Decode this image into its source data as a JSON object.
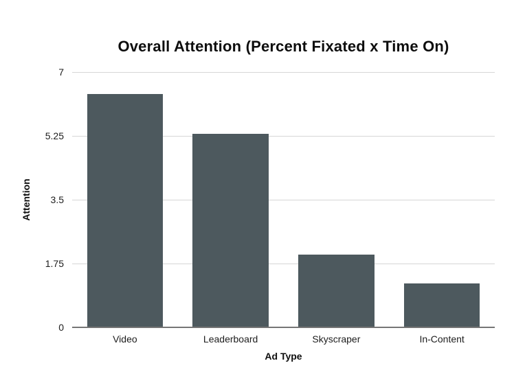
{
  "chart_data": {
    "type": "bar",
    "title": "Overall Attention (Percent Fixated x Time On)",
    "xlabel": "Ad Type",
    "ylabel": "Attention",
    "categories": [
      "Video",
      "Leaderboard",
      "Skyscraper",
      "In-Content"
    ],
    "values": [
      6.4,
      5.3,
      2,
      1.2
    ],
    "ylim": [
      0,
      7
    ],
    "yticks": [
      0,
      1.75,
      3.5,
      5.25,
      7
    ],
    "grid": "horizontal",
    "legend": "none",
    "bar_color": "#4d595e",
    "gridline_color": "#d6d6d6",
    "axis_line_color": "#757575",
    "text_color": "#1c1c1c",
    "background_color": "#ffffff"
  }
}
